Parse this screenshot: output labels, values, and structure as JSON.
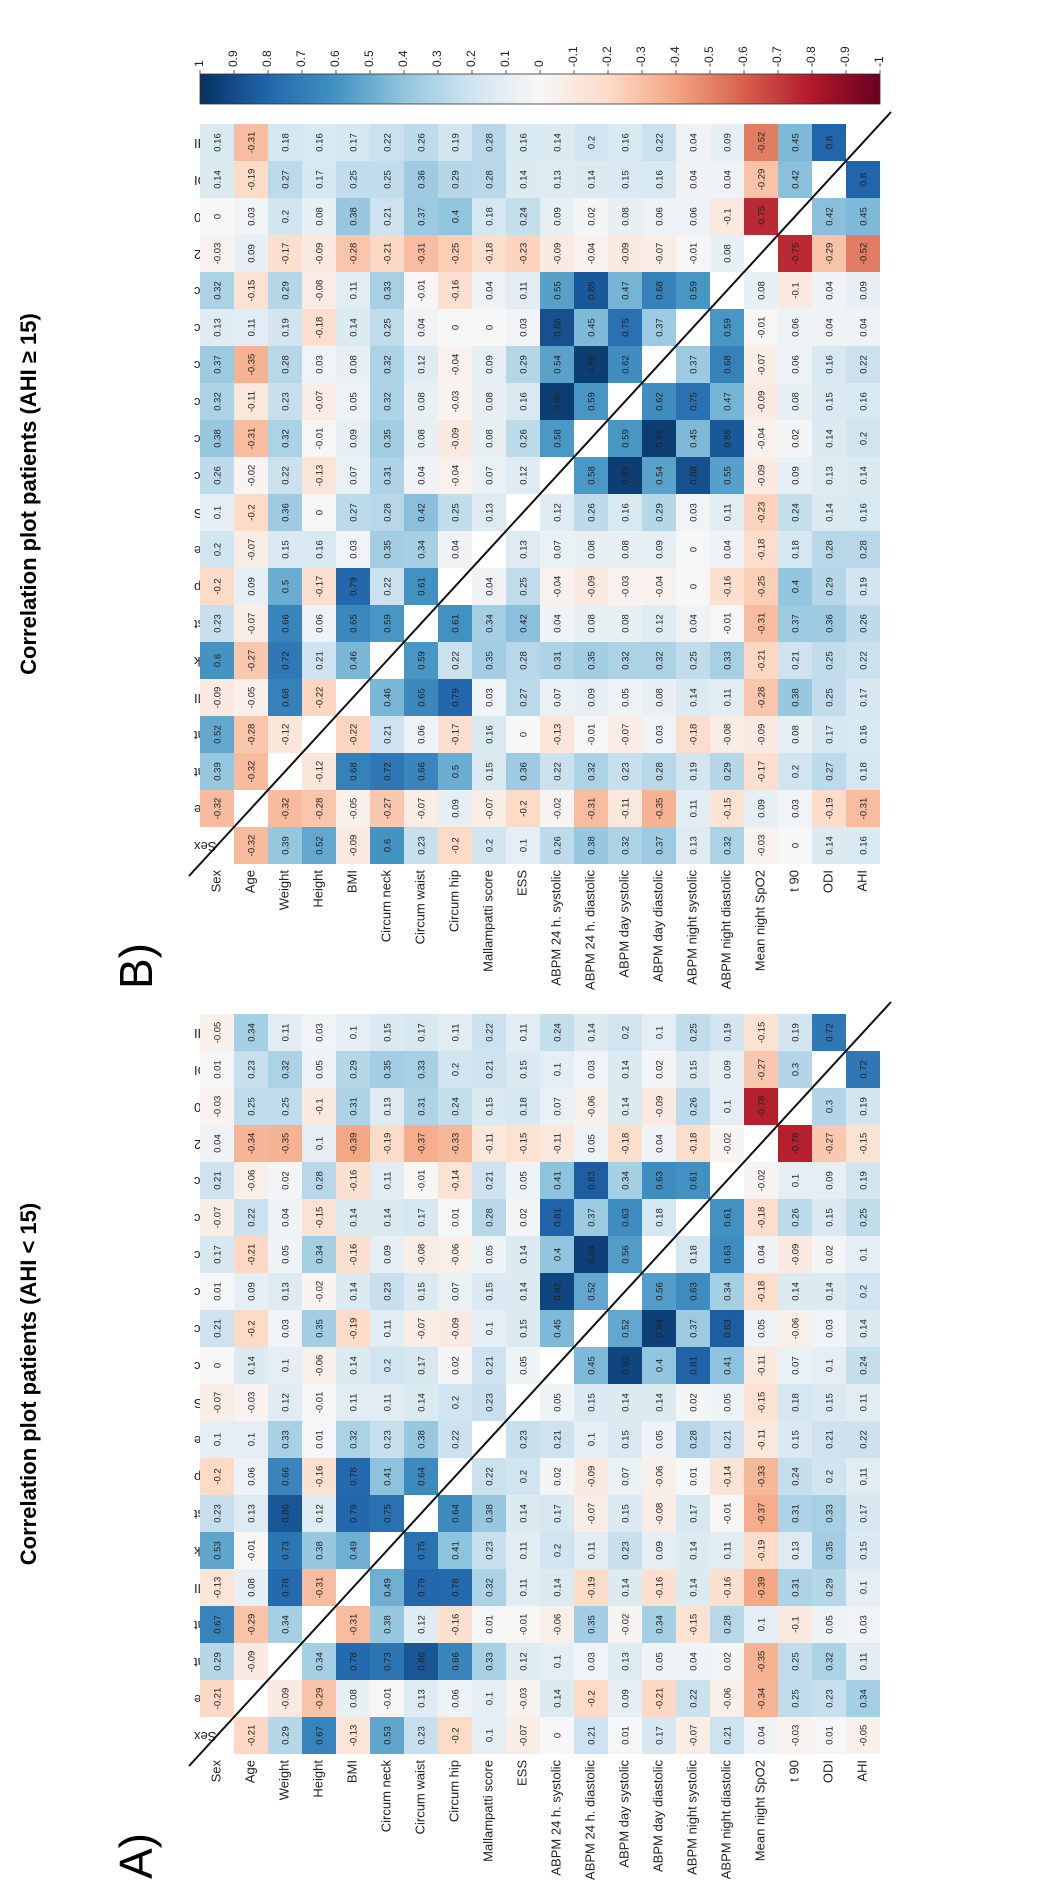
{
  "chart_data": [
    {
      "type": "heatmap",
      "title": "Correlation plot patients (AHI < 15)",
      "panel_label": "A)",
      "categories": [
        "Sex",
        "Age",
        "Weight",
        "Height",
        "BMI",
        "Circum neck",
        "Circum waist",
        "Circum hip",
        "Mallampatti score",
        "ESS",
        "ABPM 24 h. systolic",
        "ABPM 24 h. diastolic",
        "ABPM day systolic",
        "ABPM day diastolic",
        "ABPM night systolic",
        "ABPM night diastolic",
        "Mean night SpO2",
        "t 90",
        "ODI",
        "AHI"
      ],
      "zlim": [
        -1,
        1
      ],
      "colorscale": [
        "#67001f",
        "#b2182b",
        "#d6604d",
        "#f4a582",
        "#fddbc7",
        "#f7f7f7",
        "#d1e5f0",
        "#92c5de",
        "#4393c3",
        "#2166ac",
        "#053061"
      ],
      "values": [
        [
          null,
          -0.21,
          0.29,
          0.67,
          -0.13,
          0.53,
          0.23,
          -0.2,
          0.1,
          -0.07,
          0,
          0.21,
          0.01,
          0.17,
          -0.07,
          0.21,
          0.04,
          -0.03,
          0.01,
          -0.05
        ],
        [
          -0.21,
          null,
          -0.09,
          -0.29,
          0.08,
          -0.01,
          0.13,
          0.06,
          0.1,
          -0.03,
          0.14,
          -0.2,
          0.09,
          -0.21,
          0.22,
          -0.06,
          -0.34,
          0.25,
          0.23,
          0.34
        ],
        [
          0.29,
          -0.09,
          null,
          0.34,
          0.78,
          0.73,
          0.86,
          0.66,
          0.33,
          0.12,
          0.1,
          0.03,
          0.13,
          0.05,
          0.04,
          0.02,
          -0.35,
          0.25,
          0.32,
          0.11
        ],
        [
          0.67,
          -0.29,
          0.34,
          null,
          -0.31,
          0.38,
          0.12,
          -0.16,
          0.01,
          -0.01,
          -0.06,
          0.35,
          -0.02,
          0.34,
          -0.15,
          0.28,
          0.1,
          -0.1,
          0.05,
          0.03
        ],
        [
          -0.13,
          0.08,
          0.78,
          -0.31,
          null,
          0.49,
          0.79,
          0.78,
          0.32,
          0.11,
          0.14,
          -0.19,
          0.14,
          -0.16,
          0.14,
          -0.16,
          -0.39,
          0.31,
          0.29,
          0.1
        ],
        [
          0.53,
          -0.01,
          0.73,
          0.38,
          0.49,
          null,
          0.75,
          0.41,
          0.23,
          0.11,
          0.2,
          0.11,
          0.23,
          0.09,
          0.14,
          0.11,
          -0.19,
          0.13,
          0.35,
          0.15
        ],
        [
          0.23,
          0.13,
          0.86,
          0.12,
          0.79,
          0.75,
          null,
          0.64,
          0.38,
          0.14,
          0.17,
          -0.07,
          0.15,
          -0.08,
          0.17,
          -0.01,
          -0.37,
          0.31,
          0.33,
          0.17
        ],
        [
          -0.2,
          0.06,
          0.66,
          -0.16,
          0.78,
          0.41,
          0.64,
          null,
          0.22,
          0.2,
          0.02,
          -0.09,
          0.07,
          -0.06,
          0.01,
          -0.14,
          -0.33,
          0.24,
          0.2,
          0.11
        ],
        [
          0.1,
          0.1,
          0.33,
          0.01,
          0.32,
          0.23,
          0.38,
          0.22,
          null,
          0.23,
          0.21,
          0.1,
          0.15,
          0.05,
          0.28,
          0.21,
          -0.11,
          0.15,
          0.21,
          0.22
        ],
        [
          -0.07,
          -0.03,
          0.12,
          -0.01,
          0.11,
          0.11,
          0.14,
          0.2,
          0.23,
          null,
          0.05,
          0.15,
          0.14,
          0.14,
          0.02,
          0.05,
          -0.15,
          0.18,
          0.15,
          0.11
        ],
        [
          0,
          0.14,
          0.1,
          -0.06,
          0.14,
          0.2,
          0.17,
          0.02,
          0.21,
          0.05,
          null,
          0.45,
          0.92,
          0.4,
          0.81,
          0.41,
          -0.11,
          0.07,
          0.1,
          0.24
        ],
        [
          0.21,
          -0.2,
          0.03,
          0.35,
          -0.19,
          0.11,
          -0.07,
          -0.09,
          0.1,
          0.15,
          0.45,
          null,
          0.52,
          0.94,
          0.37,
          0.83,
          0.05,
          -0.06,
          0.03,
          0.14
        ],
        [
          0.01,
          0.09,
          0.13,
          -0.02,
          0.14,
          0.23,
          0.15,
          0.07,
          0.15,
          0.14,
          0.92,
          0.52,
          null,
          0.56,
          0.63,
          0.34,
          -0.18,
          0.14,
          0.14,
          0.2
        ],
        [
          0.17,
          -0.21,
          0.05,
          0.34,
          -0.16,
          0.09,
          -0.08,
          -0.06,
          0.05,
          0.14,
          0.4,
          0.94,
          0.56,
          null,
          0.18,
          0.63,
          0.04,
          -0.09,
          0.02,
          0.1
        ],
        [
          -0.07,
          0.22,
          0.04,
          -0.15,
          0.14,
          0.14,
          0.17,
          0.01,
          0.28,
          0.02,
          0.81,
          0.37,
          0.63,
          0.18,
          null,
          0.61,
          -0.18,
          0.26,
          0.15,
          0.25
        ],
        [
          0.21,
          -0.06,
          0.02,
          0.28,
          -0.16,
          0.11,
          -0.01,
          -0.14,
          0.21,
          0.05,
          0.41,
          0.83,
          0.34,
          0.63,
          0.61,
          null,
          -0.02,
          0.1,
          0.09,
          0.19
        ],
        [
          0.04,
          -0.34,
          -0.35,
          0.1,
          -0.39,
          -0.19,
          -0.37,
          -0.33,
          -0.11,
          -0.15,
          -0.11,
          0.05,
          -0.18,
          0.04,
          -0.18,
          -0.02,
          null,
          -0.78,
          -0.27,
          -0.15
        ],
        [
          -0.03,
          0.25,
          0.25,
          -0.1,
          0.31,
          0.13,
          0.31,
          0.24,
          0.15,
          0.18,
          0.07,
          -0.06,
          0.14,
          -0.09,
          0.26,
          0.1,
          -0.78,
          null,
          0.3,
          0.19
        ],
        [
          0.01,
          0.23,
          0.32,
          0.05,
          0.29,
          0.35,
          0.33,
          0.2,
          0.21,
          0.15,
          0.1,
          0.03,
          0.14,
          0.02,
          0.15,
          0.09,
          -0.27,
          0.3,
          null,
          0.72
        ],
        [
          -0.05,
          0.34,
          0.11,
          0.03,
          0.1,
          0.15,
          0.17,
          0.11,
          0.22,
          0.11,
          0.24,
          0.14,
          0.2,
          0.1,
          0.25,
          0.19,
          -0.15,
          0.19,
          0.72,
          null
        ]
      ]
    },
    {
      "type": "heatmap",
      "title": "Correlation plot patients (AHI ≥ 15)",
      "panel_label": "B)",
      "categories": [
        "Sex",
        "Age",
        "Weight",
        "Height",
        "BMI",
        "Circum neck",
        "Circum waist",
        "Circum hip",
        "Mallampatti score",
        "ESS",
        "ABPM 24 h. systolic",
        "ABPM 24 h. diastolic",
        "ABPM day systolic",
        "ABPM day diastolic",
        "ABPM night systolic",
        "ABPM night diastolic",
        "Mean night SpO2",
        "t 90",
        "ODI",
        "AHI"
      ],
      "zlim": [
        -1,
        1
      ],
      "zticks": [
        1,
        0.9,
        0.8,
        0.7,
        0.6,
        0.5,
        0.4,
        0.3,
        0.2,
        0.1,
        0,
        -0.1,
        -0.2,
        -0.3,
        -0.4,
        -0.5,
        -0.6,
        -0.7,
        -0.8,
        -0.9,
        -1
      ],
      "colorscale": [
        "#67001f",
        "#b2182b",
        "#d6604d",
        "#f4a582",
        "#fddbc7",
        "#f7f7f7",
        "#d1e5f0",
        "#92c5de",
        "#4393c3",
        "#2166ac",
        "#053061"
      ],
      "values": [
        [
          null,
          -0.32,
          0.39,
          0.52,
          -0.09,
          0.6,
          0.23,
          -0.2,
          0.2,
          0.1,
          0.26,
          0.38,
          0.32,
          0.37,
          0.13,
          0.32,
          -0.03,
          0,
          0.14,
          0.16
        ],
        [
          -0.32,
          null,
          -0.32,
          -0.28,
          -0.05,
          -0.27,
          -0.07,
          0.09,
          -0.07,
          -0.2,
          -0.02,
          -0.31,
          -0.11,
          -0.35,
          0.11,
          -0.15,
          0.09,
          0.03,
          -0.19,
          -0.31
        ],
        [
          0.39,
          -0.32,
          null,
          -0.12,
          0.68,
          0.72,
          0.66,
          0.5,
          0.15,
          0.36,
          0.22,
          0.32,
          0.23,
          0.28,
          0.19,
          0.29,
          -0.17,
          0.2,
          0.27,
          0.18
        ],
        [
          0.52,
          -0.28,
          -0.12,
          null,
          -0.22,
          0.21,
          0.06,
          -0.17,
          0.16,
          0,
          -0.13,
          -0.01,
          -0.07,
          0.03,
          -0.18,
          -0.08,
          -0.09,
          0.08,
          0.17,
          0.16
        ],
        [
          -0.09,
          -0.05,
          0.68,
          -0.22,
          null,
          0.46,
          0.65,
          0.79,
          0.03,
          0.27,
          0.07,
          0.09,
          0.05,
          0.08,
          0.14,
          0.11,
          -0.28,
          0.38,
          0.25,
          0.17
        ],
        [
          0.6,
          -0.27,
          0.72,
          0.21,
          0.46,
          null,
          0.59,
          0.22,
          0.35,
          0.28,
          0.31,
          0.35,
          0.32,
          0.32,
          0.25,
          0.33,
          -0.21,
          0.21,
          0.25,
          0.22
        ],
        [
          0.23,
          -0.07,
          0.66,
          0.06,
          0.65,
          0.59,
          null,
          0.61,
          0.34,
          0.42,
          0.04,
          0.08,
          0.08,
          0.12,
          0.04,
          -0.01,
          -0.31,
          0.37,
          0.36,
          0.26
        ],
        [
          -0.2,
          0.09,
          0.5,
          -0.17,
          0.79,
          0.22,
          0.61,
          null,
          0.04,
          0.25,
          -0.04,
          -0.09,
          -0.03,
          -0.04,
          0,
          -0.16,
          -0.25,
          0.4,
          0.29,
          0.19
        ],
        [
          0.2,
          -0.07,
          0.15,
          0.16,
          0.03,
          0.35,
          0.34,
          0.04,
          null,
          0.13,
          0.07,
          0.08,
          0.08,
          0.09,
          0,
          0.04,
          -0.18,
          0.18,
          0.28,
          0.28
        ],
        [
          0.1,
          -0.2,
          0.36,
          0,
          0.27,
          0.28,
          0.42,
          0.25,
          0.13,
          null,
          0.12,
          0.26,
          0.16,
          0.29,
          0.03,
          0.11,
          -0.23,
          0.24,
          0.14,
          0.16
        ],
        [
          0.26,
          -0.02,
          0.22,
          -0.13,
          0.07,
          0.31,
          0.04,
          -0.04,
          0.07,
          0.12,
          null,
          0.58,
          0.95,
          0.54,
          0.88,
          0.55,
          -0.09,
          0.09,
          0.13,
          0.14
        ],
        [
          0.38,
          -0.31,
          0.32,
          -0.01,
          0.09,
          0.35,
          0.08,
          -0.09,
          0.08,
          0.26,
          0.58,
          null,
          0.59,
          0.95,
          0.45,
          0.85,
          -0.04,
          0.02,
          0.14,
          0.2
        ],
        [
          0.32,
          -0.11,
          0.23,
          -0.07,
          0.05,
          0.32,
          0.08,
          -0.03,
          0.08,
          0.16,
          0.95,
          0.59,
          null,
          0.62,
          0.75,
          0.47,
          -0.09,
          0.08,
          0.15,
          0.16
        ],
        [
          0.37,
          -0.35,
          0.28,
          0.03,
          0.08,
          0.32,
          0.12,
          -0.04,
          0.09,
          0.29,
          0.54,
          0.95,
          0.62,
          null,
          0.37,
          0.68,
          -0.07,
          0.06,
          0.16,
          0.22
        ],
        [
          0.13,
          0.11,
          0.19,
          -0.18,
          0.14,
          0.25,
          0.04,
          0,
          0,
          0.03,
          0.88,
          0.45,
          0.75,
          0.37,
          null,
          0.59,
          -0.01,
          0.06,
          0.04,
          0.04
        ],
        [
          0.32,
          -0.15,
          0.29,
          -0.08,
          0.11,
          0.33,
          -0.01,
          -0.16,
          0.04,
          0.11,
          0.55,
          0.85,
          0.47,
          0.68,
          0.59,
          null,
          0.08,
          -0.1,
          0.04,
          0.09
        ],
        [
          -0.03,
          0.09,
          -0.17,
          -0.09,
          -0.28,
          -0.21,
          -0.31,
          -0.25,
          -0.18,
          -0.23,
          -0.09,
          -0.04,
          -0.09,
          -0.07,
          -0.01,
          0.08,
          null,
          -0.75,
          -0.29,
          -0.52
        ],
        [
          0,
          0.03,
          0.2,
          0.08,
          0.38,
          0.21,
          0.37,
          0.4,
          0.18,
          0.24,
          0.09,
          0.02,
          0.08,
          0.06,
          0.06,
          -0.1,
          -0.75,
          null,
          0.42,
          0.45
        ],
        [
          0.14,
          -0.19,
          0.27,
          0.17,
          0.25,
          0.25,
          0.36,
          0.29,
          0.28,
          0.14,
          0.13,
          0.14,
          0.15,
          0.16,
          0.04,
          0.04,
          -0.29,
          0.42,
          null,
          0.8
        ],
        [
          0.16,
          -0.31,
          0.18,
          0.16,
          0.17,
          0.22,
          0.26,
          0.19,
          0.28,
          0.16,
          0.14,
          0.2,
          0.16,
          0.22,
          0.04,
          0.09,
          -0.52,
          0.45,
          0.8,
          null
        ]
      ]
    }
  ]
}
